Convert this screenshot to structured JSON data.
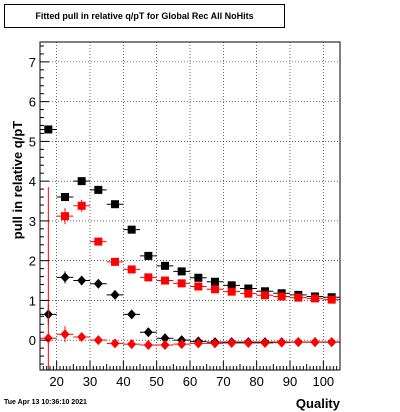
{
  "timestamp": "Tue Apr 13 10:36:10 2021",
  "chart_data": {
    "type": "scatter",
    "title": "Fitted pull in relative q/pT for Global Rec All NoHits",
    "xlabel": "Quality",
    "ylabel": "pull in relative q/pT",
    "xlim": [
      15,
      105
    ],
    "ylim": [
      -0.75,
      7.5
    ],
    "x_ticks": [
      20,
      30,
      40,
      50,
      60,
      70,
      80,
      90,
      100
    ],
    "y_ticks": [
      0,
      1,
      2,
      3,
      4,
      5,
      6,
      7
    ],
    "grid": true,
    "legend": "none",
    "series": [
      {
        "marker": "square",
        "color": "#000000",
        "x": [
          17.5,
          22.5,
          27.5,
          32.5,
          37.5,
          42.5,
          47.5,
          52.5,
          57.5,
          62.5,
          67.5,
          72.5,
          77.5,
          82.5,
          87.5,
          92.5,
          97.5,
          102.5
        ],
        "y": [
          5.3,
          3.6,
          4.0,
          3.78,
          3.42,
          2.78,
          2.12,
          1.87,
          1.73,
          1.57,
          1.47,
          1.38,
          1.3,
          1.23,
          1.18,
          1.14,
          1.1,
          1.08
        ],
        "yerr": [
          0.05,
          0.08,
          0.06,
          0.05,
          0.05,
          0.04,
          0.04,
          0.03,
          0.03,
          0.03,
          0.03,
          0.02,
          0.02,
          0.02,
          0.02,
          0.02,
          0.02,
          0.02
        ]
      },
      {
        "marker": "square",
        "color": "#ff0000",
        "x": [
          22.5,
          27.5,
          32.5,
          37.5,
          42.5,
          47.5,
          52.5,
          57.5,
          62.5,
          67.5,
          72.5,
          77.5,
          82.5,
          87.5,
          92.5,
          97.5,
          102.5
        ],
        "y": [
          3.12,
          3.38,
          2.48,
          1.97,
          1.78,
          1.58,
          1.5,
          1.43,
          1.35,
          1.28,
          1.22,
          1.17,
          1.13,
          1.1,
          1.07,
          1.05,
          1.02
        ],
        "yerr": [
          0.2,
          0.15,
          0.06,
          0.05,
          0.04,
          0.03,
          0.03,
          0.03,
          0.02,
          0.02,
          0.02,
          0.02,
          0.02,
          0.02,
          0.02,
          0.02,
          0.02
        ]
      },
      {
        "marker": "diamond",
        "color": "#000000",
        "x": [
          17.5,
          22.5,
          27.5,
          32.5,
          37.5,
          42.5,
          47.5,
          52.5,
          57.5,
          62.5,
          67.5,
          72.5,
          77.5,
          82.5,
          87.5,
          92.5,
          97.5,
          102.5
        ],
        "y": [
          0.65,
          1.58,
          1.5,
          1.42,
          1.14,
          0.65,
          0.2,
          0.05,
          0.0,
          -0.03,
          -0.05,
          -0.05,
          -0.05,
          -0.05,
          -0.05,
          -0.05,
          -0.05,
          -0.05
        ],
        "yerr": [
          0.25,
          0.15,
          0.05,
          0.05,
          0.05,
          0.04,
          0.03,
          0.03,
          0.02,
          0.02,
          0.02,
          0.02,
          0.02,
          0.02,
          0.02,
          0.02,
          0.02,
          0.02
        ]
      },
      {
        "marker": "diamond",
        "color": "#ff0000",
        "x": [
          17.5,
          22.5,
          27.5,
          32.5,
          37.5,
          42.5,
          47.5,
          52.5,
          57.5,
          62.5,
          67.5,
          72.5,
          77.5,
          82.5,
          87.5,
          92.5,
          97.5,
          102.5
        ],
        "y": [
          0.05,
          0.15,
          0.08,
          0.0,
          -0.08,
          -0.1,
          -0.12,
          -0.12,
          -0.1,
          -0.08,
          -0.08,
          -0.07,
          -0.07,
          -0.07,
          -0.06,
          -0.05,
          -0.05,
          -0.05
        ],
        "yerr": [
          3.8,
          0.2,
          0.08,
          0.05,
          0.04,
          0.03,
          0.03,
          0.03,
          0.02,
          0.02,
          0.02,
          0.02,
          0.02,
          0.02,
          0.02,
          0.02,
          0.02,
          0.02
        ]
      }
    ]
  }
}
